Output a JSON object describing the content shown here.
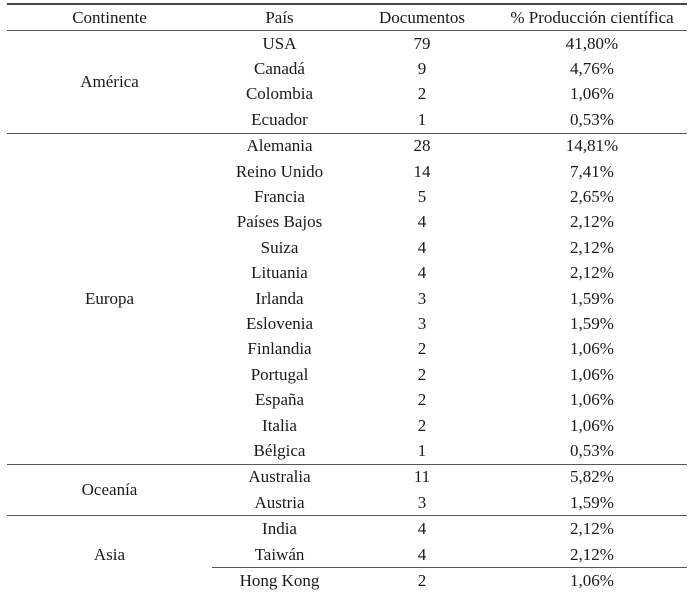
{
  "table": {
    "columns": [
      "Continente",
      "País",
      "Documentos",
      "% Producción científica"
    ],
    "groups": [
      {
        "continente": "América",
        "rows": [
          {
            "pais": "USA",
            "documentos": "79",
            "porcentaje": "41,80%"
          },
          {
            "pais": "Canadá",
            "documentos": "9",
            "porcentaje": "4,76%"
          },
          {
            "pais": "Colombia",
            "documentos": "2",
            "porcentaje": "1,06%"
          },
          {
            "pais": "Ecuador",
            "documentos": "1",
            "porcentaje": "0,53%"
          }
        ]
      },
      {
        "continente": "Europa",
        "rows": [
          {
            "pais": "Alemania",
            "documentos": "28",
            "porcentaje": "14,81%"
          },
          {
            "pais": "Reino Unido",
            "documentos": "14",
            "porcentaje": "7,41%"
          },
          {
            "pais": "Francia",
            "documentos": "5",
            "porcentaje": "2,65%"
          },
          {
            "pais": "Países Bajos",
            "documentos": "4",
            "porcentaje": "2,12%"
          },
          {
            "pais": "Suiza",
            "documentos": "4",
            "porcentaje": "2,12%"
          },
          {
            "pais": "Lituania",
            "documentos": "4",
            "porcentaje": "2,12%"
          },
          {
            "pais": "Irlanda",
            "documentos": "3",
            "porcentaje": "1,59%"
          },
          {
            "pais": "Eslovenia",
            "documentos": "3",
            "porcentaje": "1,59%"
          },
          {
            "pais": "Finlandia",
            "documentos": "2",
            "porcentaje": "1,06%"
          },
          {
            "pais": "Portugal",
            "documentos": "2",
            "porcentaje": "1,06%"
          },
          {
            "pais": "España",
            "documentos": "2",
            "porcentaje": "1,06%"
          },
          {
            "pais": "Italia",
            "documentos": "2",
            "porcentaje": "1,06%"
          },
          {
            "pais": "Bélgica",
            "documentos": "1",
            "porcentaje": "0,53%"
          }
        ]
      },
      {
        "continente": "Oceanía",
        "rows": [
          {
            "pais": "Australia",
            "documentos": "11",
            "porcentaje": "5,82%"
          },
          {
            "pais": "Austria",
            "documentos": "3",
            "porcentaje": "1,59%"
          }
        ]
      },
      {
        "continente": "Asia",
        "rows": [
          {
            "pais": "India",
            "documentos": "4",
            "porcentaje": "2,12%"
          },
          {
            "pais": "Taiwán",
            "documentos": "4",
            "porcentaje": "2,12%"
          },
          {
            "pais": "Hong Kong",
            "documentos": "2",
            "porcentaje": "1,06%",
            "rule_above": true
          }
        ]
      }
    ]
  },
  "chart_data": {
    "type": "table",
    "title": "",
    "columns": [
      "Continente",
      "País",
      "Documentos",
      "% Producción científica"
    ],
    "rows": [
      [
        "América",
        "USA",
        79,
        "41,80%"
      ],
      [
        "América",
        "Canadá",
        9,
        "4,76%"
      ],
      [
        "América",
        "Colombia",
        2,
        "1,06%"
      ],
      [
        "América",
        "Ecuador",
        1,
        "0,53%"
      ],
      [
        "Europa",
        "Alemania",
        28,
        "14,81%"
      ],
      [
        "Europa",
        "Reino Unido",
        14,
        "7,41%"
      ],
      [
        "Europa",
        "Francia",
        5,
        "2,65%"
      ],
      [
        "Europa",
        "Países Bajos",
        4,
        "2,12%"
      ],
      [
        "Europa",
        "Suiza",
        4,
        "2,12%"
      ],
      [
        "Europa",
        "Lituania",
        4,
        "2,12%"
      ],
      [
        "Europa",
        "Irlanda",
        3,
        "1,59%"
      ],
      [
        "Europa",
        "Eslovenia",
        3,
        "1,59%"
      ],
      [
        "Europa",
        "Finlandia",
        2,
        "1,06%"
      ],
      [
        "Europa",
        "Portugal",
        2,
        "1,06%"
      ],
      [
        "Europa",
        "España",
        2,
        "1,06%"
      ],
      [
        "Europa",
        "Italia",
        2,
        "1,06%"
      ],
      [
        "Europa",
        "Bélgica",
        1,
        "0,53%"
      ],
      [
        "Oceanía",
        "Australia",
        11,
        "5,82%"
      ],
      [
        "Oceanía",
        "Austria",
        3,
        "1,59%"
      ],
      [
        "Asia",
        "India",
        4,
        "2,12%"
      ],
      [
        "Asia",
        "Taiwán",
        4,
        "2,12%"
      ],
      [
        "Asia",
        "Hong Kong",
        2,
        "1,06%"
      ]
    ]
  }
}
